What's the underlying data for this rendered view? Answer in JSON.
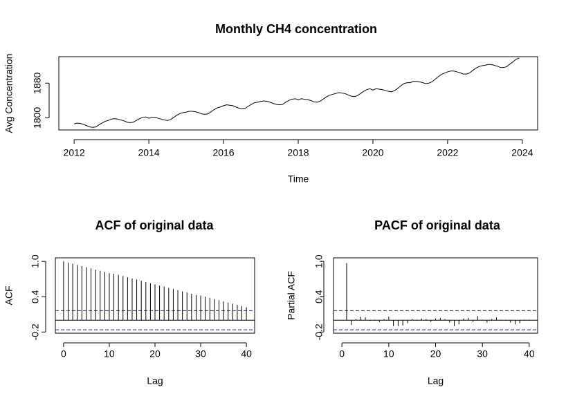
{
  "chart_data": [
    {
      "type": "line",
      "title": "Monthly CH4 concentration",
      "x_label": "Time",
      "y_label": "Avg Concentration",
      "color": "#000000",
      "x": [
        2012,
        2012.083,
        2012.167,
        2012.25,
        2012.333,
        2012.417,
        2012.5,
        2012.583,
        2012.667,
        2012.75,
        2012.833,
        2012.917,
        2013,
        2013.083,
        2013.167,
        2013.25,
        2013.333,
        2013.417,
        2013.5,
        2013.583,
        2013.667,
        2013.75,
        2013.833,
        2013.917,
        2014,
        2014.083,
        2014.167,
        2014.25,
        2014.333,
        2014.417,
        2014.5,
        2014.583,
        2014.667,
        2014.75,
        2014.833,
        2014.917,
        2015,
        2015.083,
        2015.167,
        2015.25,
        2015.333,
        2015.417,
        2015.5,
        2015.583,
        2015.667,
        2015.75,
        2015.833,
        2015.917,
        2016,
        2016.083,
        2016.167,
        2016.25,
        2016.333,
        2016.417,
        2016.5,
        2016.583,
        2016.667,
        2016.75,
        2016.833,
        2016.917,
        2017,
        2017.083,
        2017.167,
        2017.25,
        2017.333,
        2017.417,
        2017.5,
        2017.583,
        2017.667,
        2017.75,
        2017.833,
        2017.917,
        2018,
        2018.083,
        2018.167,
        2018.25,
        2018.333,
        2018.417,
        2018.5,
        2018.583,
        2018.667,
        2018.75,
        2018.833,
        2018.917,
        2019,
        2019.083,
        2019.167,
        2019.25,
        2019.333,
        2019.417,
        2019.5,
        2019.583,
        2019.667,
        2019.75,
        2019.833,
        2019.917,
        2020,
        2020.083,
        2020.167,
        2020.25,
        2020.333,
        2020.417,
        2020.5,
        2020.583,
        2020.667,
        2020.75,
        2020.833,
        2020.917,
        2021,
        2021.083,
        2021.167,
        2021.25,
        2021.333,
        2021.417,
        2021.5,
        2021.583,
        2021.667,
        2021.75,
        2021.833,
        2021.917,
        2022,
        2022.083,
        2022.167,
        2022.25,
        2022.333,
        2022.417,
        2022.5,
        2022.583,
        2022.667,
        2022.75,
        2022.833,
        2022.917,
        2023,
        2023.083,
        2023.167,
        2023.25,
        2023.333,
        2023.417,
        2023.5,
        2023.583,
        2023.667,
        2023.75,
        2023.833,
        2023.917
      ],
      "values": [
        1786,
        1788,
        1787,
        1785,
        1782,
        1779,
        1778,
        1779,
        1784,
        1788,
        1792,
        1794,
        1797,
        1798,
        1797,
        1795,
        1793,
        1790,
        1789,
        1790,
        1794,
        1798,
        1801,
        1802,
        1799,
        1801,
        1801,
        1799,
        1797,
        1795,
        1794,
        1796,
        1801,
        1806,
        1810,
        1812,
        1813,
        1815,
        1815,
        1814,
        1812,
        1809,
        1808,
        1809,
        1814,
        1819,
        1823,
        1825,
        1828,
        1830,
        1829,
        1828,
        1825,
        1822,
        1821,
        1822,
        1827,
        1831,
        1835,
        1836,
        1838,
        1839,
        1838,
        1836,
        1833,
        1831,
        1830,
        1831,
        1836,
        1840,
        1843,
        1844,
        1842,
        1844,
        1843,
        1842,
        1840,
        1837,
        1836,
        1838,
        1843,
        1848,
        1852,
        1854,
        1856,
        1858,
        1857,
        1856,
        1853,
        1850,
        1849,
        1851,
        1856,
        1861,
        1865,
        1867,
        1864,
        1867,
        1866,
        1865,
        1863,
        1861,
        1860,
        1863,
        1868,
        1874,
        1879,
        1881,
        1881,
        1884,
        1884,
        1883,
        1881,
        1879,
        1880,
        1883,
        1889,
        1895,
        1900,
        1903,
        1906,
        1908,
        1908,
        1906,
        1904,
        1901,
        1901,
        1903,
        1909,
        1914,
        1918,
        1920,
        1921,
        1923,
        1923,
        1921,
        1919,
        1916,
        1916,
        1918,
        1924,
        1929,
        1935,
        1938
      ],
      "xlim": [
        2011.59,
        2024.41
      ],
      "ylim": [
        1772,
        1941
      ],
      "xticks": [
        2012,
        2014,
        2016,
        2018,
        2020,
        2022,
        2024
      ],
      "yticks": [
        1800,
        1880
      ]
    },
    {
      "type": "stem",
      "title": "ACF of original data",
      "x_label": "Lag",
      "y_label": "ACF",
      "color": "#000000",
      "ci_color": "#2020c0",
      "x": [
        0,
        1,
        2,
        3,
        4,
        5,
        6,
        7,
        8,
        9,
        10,
        11,
        12,
        13,
        14,
        15,
        16,
        17,
        18,
        19,
        20,
        21,
        22,
        23,
        24,
        25,
        26,
        27,
        28,
        29,
        30,
        31,
        32,
        33,
        34,
        35,
        36,
        37,
        38,
        39,
        40
      ],
      "values": [
        1.0,
        0.98,
        0.96,
        0.94,
        0.92,
        0.9,
        0.88,
        0.86,
        0.84,
        0.82,
        0.8,
        0.79,
        0.77,
        0.75,
        0.73,
        0.71,
        0.69,
        0.67,
        0.65,
        0.63,
        0.61,
        0.59,
        0.57,
        0.55,
        0.53,
        0.51,
        0.49,
        0.47,
        0.45,
        0.43,
        0.42,
        0.4,
        0.38,
        0.36,
        0.34,
        0.32,
        0.3,
        0.28,
        0.26,
        0.24,
        0.22
      ],
      "ci": [
        -0.163,
        0.163
      ],
      "xlim": [
        -1.8,
        41.8
      ],
      "ylim": [
        -0.22,
        1.06
      ],
      "xticks": [
        0,
        10,
        20,
        30,
        40
      ],
      "yticks": [
        -0.2,
        0.4,
        {
          "value": 1,
          "label": "1.0"
        }
      ]
    },
    {
      "type": "stem",
      "title": "PACF of original data",
      "x_label": "Lag",
      "y_label": "Partial ACF",
      "color": "#000000",
      "ci_color": "#2020c0",
      "x": [
        1,
        2,
        3,
        4,
        5,
        6,
        7,
        8,
        9,
        10,
        11,
        12,
        13,
        14,
        15,
        16,
        17,
        18,
        19,
        20,
        21,
        22,
        23,
        24,
        25,
        26,
        27,
        28,
        29,
        30,
        31,
        32,
        33,
        34,
        35,
        36,
        37,
        38,
        39,
        40
      ],
      "values": [
        0.97,
        -0.08,
        0.02,
        0.06,
        0.05,
        -0.01,
        0.01,
        -0.03,
        0.02,
        0.06,
        -0.1,
        -0.1,
        -0.09,
        -0.05,
        0.02,
        0.01,
        0.03,
        0.02,
        -0.03,
        0.03,
        0.04,
        0.02,
        -0.04,
        -0.1,
        -0.07,
        0.03,
        0.04,
        -0.03,
        0.07,
        0.01,
        -0.04,
        0.02,
        0.05,
        0.01,
        -0.01,
        -0.04,
        -0.07,
        -0.05,
        0.01,
        0.01
      ],
      "ci": [
        -0.163,
        0.163
      ],
      "xlim": [
        -1.8,
        41.8
      ],
      "ylim": [
        -0.22,
        1.06
      ],
      "xticks": [
        0,
        10,
        20,
        30,
        40
      ],
      "yticks": [
        -0.2,
        0.4,
        {
          "value": 1,
          "label": "1.0"
        }
      ]
    }
  ]
}
